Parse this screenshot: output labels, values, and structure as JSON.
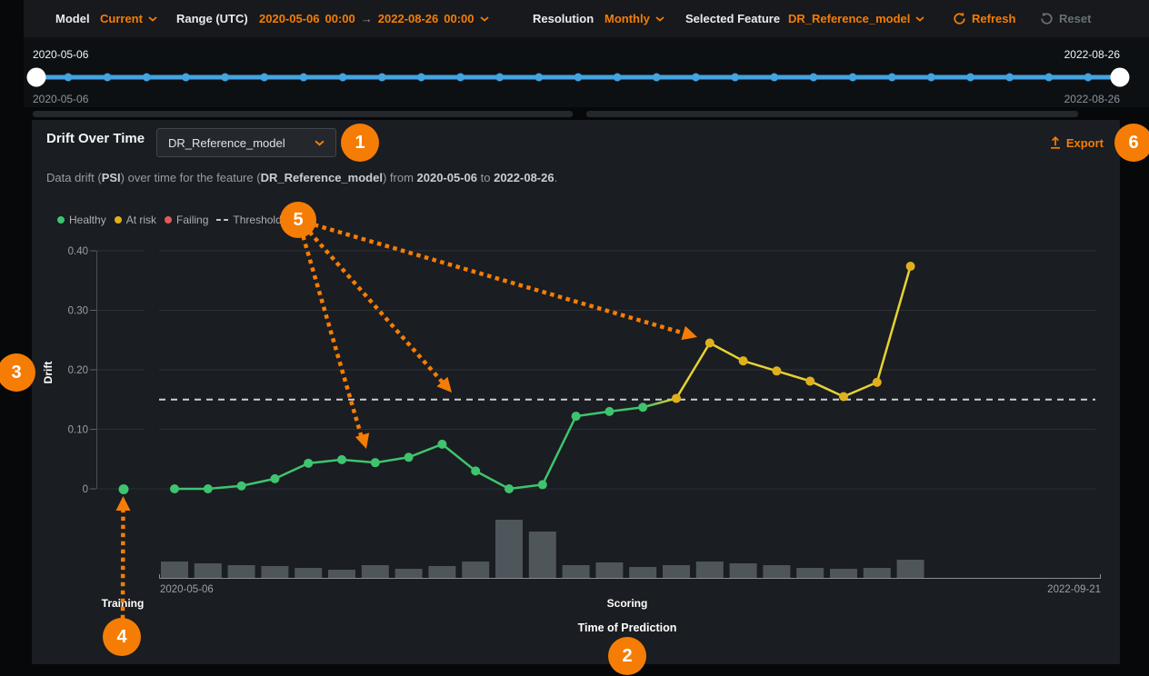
{
  "header": {
    "model_label": "Model",
    "model_value": "Current",
    "range_label": "Range (UTC)",
    "range_start_date": "2020-05-06",
    "range_start_time": "00:00",
    "range_arrow": "→",
    "range_end_date": "2022-08-26",
    "range_end_time": "00:00",
    "resolution_label": "Resolution",
    "resolution_value": "Monthly",
    "feature_label": "Selected Feature",
    "feature_value": "DR_Reference_model",
    "refresh_label": "Refresh",
    "reset_label": "Reset"
  },
  "timeline": {
    "start_label_top": "2020-05-06",
    "end_label_top": "2022-08-26",
    "start_label_bottom": "2020-05-06",
    "end_label_bottom": "2022-08-26",
    "dot_count": 27
  },
  "panel": {
    "title": "Drift Over Time",
    "feature_dropdown_value": "DR_Reference_model",
    "export_label": "Export",
    "subtitle": {
      "t1": "Data drift (",
      "b1": "PSI",
      "t2": ") over time for the feature (",
      "b2": "DR_Reference_model",
      "t3": ") from ",
      "b3": "2020-05-06",
      "t4": " to ",
      "b4": "2022-08-26",
      "t5": "."
    },
    "legend": {
      "items": [
        {
          "label": "Healthy",
          "color": "#3ec46f"
        },
        {
          "label": "At risk",
          "color": "#e0b01c"
        },
        {
          "label": "Failing",
          "color": "#e05c5c"
        }
      ],
      "threshold_label": "Threshold"
    }
  },
  "chart_data": {
    "type": "line",
    "title": "Drift Over Time",
    "ylabel": "Drift",
    "xlabel": "Time of Prediction",
    "sections": [
      "Training",
      "Scoring"
    ],
    "ylim": [
      0,
      0.4
    ],
    "yticks": [
      0,
      0.1,
      0.2,
      0.3,
      0.4
    ],
    "ytick_labels": [
      "0",
      "0.10",
      "0.20",
      "0.30",
      "0.40"
    ],
    "threshold": 0.15,
    "x_start_label": "2020-05-06",
    "x_end_label": "2022-09-21",
    "training_point": {
      "value": 0,
      "status": "healthy"
    },
    "series": [
      {
        "name": "Drift (PSI)",
        "values": [
          0,
          0,
          0.005,
          0.017,
          0.043,
          0.049,
          0.044,
          0.053,
          0.075,
          0.03,
          0,
          0.007,
          0.122,
          0.13,
          0.137,
          0.152,
          0.245,
          0.215,
          0.198,
          0.181,
          0.155,
          0.179,
          0.374
        ],
        "statuses": [
          "healthy",
          "healthy",
          "healthy",
          "healthy",
          "healthy",
          "healthy",
          "healthy",
          "healthy",
          "healthy",
          "healthy",
          "healthy",
          "healthy",
          "healthy",
          "healthy",
          "healthy",
          "at_risk",
          "at_risk",
          "at_risk",
          "at_risk",
          "at_risk",
          "at_risk",
          "at_risk",
          "at_risk"
        ]
      },
      {
        "name": "prediction_volume",
        "type": "bar",
        "values": [
          18,
          16,
          14,
          13,
          11,
          9,
          14,
          10,
          13,
          18,
          64,
          51,
          14,
          17,
          12,
          14,
          18,
          16,
          14,
          11,
          10,
          11,
          20
        ]
      }
    ],
    "legend_position": "top-left",
    "grid": true
  },
  "annotations": [
    "1",
    "2",
    "3",
    "4",
    "5",
    "6"
  ],
  "colors": {
    "accent_orange": "#f57d05",
    "healthy": "#3ec46f",
    "at_risk_dot": "#e0b01c",
    "at_risk_line": "#e6d234",
    "failing": "#e05c5c",
    "threshold": "#cdd0d2",
    "timeline_blue": "#45a3e0",
    "bar_gray": "#4e555b",
    "gridline": "#2c3034"
  }
}
